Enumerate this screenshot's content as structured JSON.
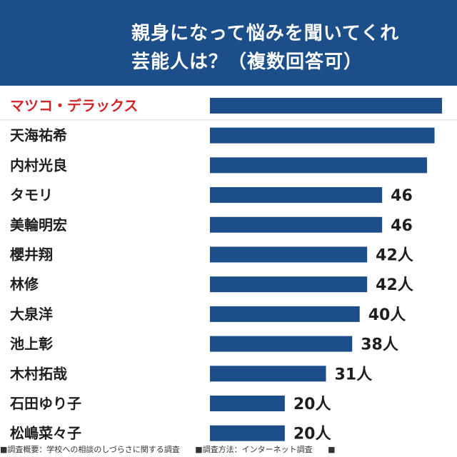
{
  "header": {
    "title_line1": "親身になって悩みを聞いてくれ",
    "title_line2": "芸能人は？（複数回答可）"
  },
  "footer": {
    "survey_summary": "■調査概要：学校への相談のしづらさに関する調査",
    "survey_method": "■調査方法：インターネット調査",
    "trailing_marker": "■"
  },
  "colors": {
    "bar": "#1c4f8a",
    "highlight": "#d0262b",
    "text": "#1e1e1e"
  },
  "chart_data": {
    "type": "bar",
    "orientation": "horizontal",
    "unit": "人",
    "categories": [
      "マツコ・デラックス",
      "天海祐希",
      "内村光良",
      "タモリ",
      "美輪明宏",
      "櫻井翔",
      "林修",
      "大泉洋",
      "池上彰",
      "木村拓哉",
      "石田ゆり子",
      "松嶋菜々子"
    ],
    "values": [
      62,
      60,
      58,
      46,
      46,
      42,
      42,
      40,
      38,
      31,
      20,
      20
    ],
    "value_labels": [
      "",
      "",
      "",
      "46",
      "46",
      "42人",
      "42人",
      "40人",
      "38人",
      "31人",
      "20人",
      "20人"
    ],
    "highlight_index": 0,
    "xlim": [
      0,
      66
    ]
  }
}
